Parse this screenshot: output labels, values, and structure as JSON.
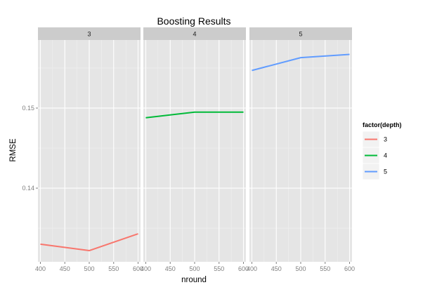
{
  "chart_data": {
    "type": "line",
    "title": "Boosting Results",
    "xlabel": "nround",
    "ylabel": "RMSE",
    "facet_variable": "depth",
    "panels": [
      "3",
      "4",
      "5"
    ],
    "x_ticks": [
      400,
      450,
      500,
      550,
      600
    ],
    "y_ticks": [
      0.14,
      0.15
    ],
    "y_tick_labels": [
      "0.14",
      "0.15"
    ],
    "xlim": [
      395,
      605
    ],
    "ylim": [
      0.1308,
      0.1585
    ],
    "grid": true,
    "legend": {
      "title": "factor(depth)",
      "placement": "right",
      "entries": [
        "3",
        "4",
        "5"
      ]
    },
    "series": [
      {
        "name": "3",
        "panel": "3",
        "color": "#F8766D",
        "x": [
          400,
          500,
          600
        ],
        "y": [
          0.133,
          0.1322,
          0.1343
        ]
      },
      {
        "name": "4",
        "panel": "4",
        "color": "#00BA38",
        "x": [
          400,
          500,
          600
        ],
        "y": [
          0.1488,
          0.1495,
          0.1495
        ]
      },
      {
        "name": "5",
        "panel": "5",
        "color": "#619CFF",
        "x": [
          400,
          500,
          600
        ],
        "y": [
          0.1547,
          0.1563,
          0.1567
        ]
      }
    ]
  }
}
